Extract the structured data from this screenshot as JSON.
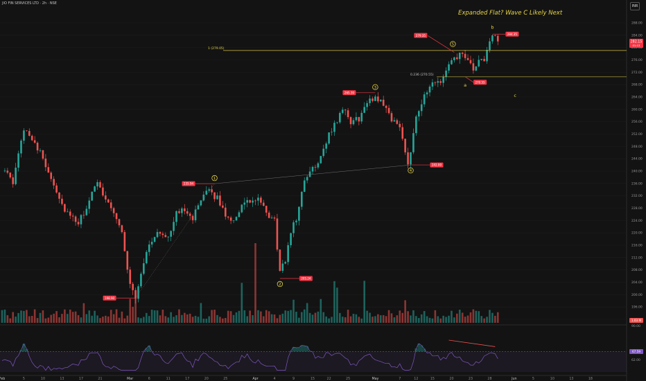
{
  "header": {
    "symbol_line": "JIO FIN SERVICES LTD · 2h · NSE",
    "currency": "INR"
  },
  "headline": "Expanded Flat? Wave C Likely Next",
  "colors": {
    "background": "#131313",
    "up": "#26a69a",
    "down": "#ef5350",
    "label": "#f23645",
    "wave": "#e8d648",
    "rsi": "#7e57c2"
  },
  "chart_data": {
    "type": "candlestick",
    "price_axis": {
      "ticks": [
        "288.00",
        "284.00",
        "280.00",
        "276.00",
        "272.00",
        "268.00",
        "264.00",
        "260.00",
        "256.00",
        "252.00",
        "248.00",
        "244.00",
        "240.00",
        "236.00",
        "232.00",
        "228.00",
        "224.00",
        "220.00",
        "216.00",
        "212.00",
        "208.00",
        "204.00",
        "200.00",
        "196.00",
        "192.00"
      ],
      "range": [
        190,
        289
      ]
    },
    "x_axis": {
      "ticks": [
        {
          "label": "Feb",
          "i": 0
        },
        {
          "label": "5",
          "i": 8
        },
        {
          "label": "10",
          "i": 15
        },
        {
          "label": "13",
          "i": 22
        },
        {
          "label": "17",
          "i": 29
        },
        {
          "label": "21",
          "i": 36
        },
        {
          "label": "Mar",
          "i": 47
        },
        {
          "label": "6",
          "i": 54
        },
        {
          "label": "11",
          "i": 61
        },
        {
          "label": "17",
          "i": 68
        },
        {
          "label": "20",
          "i": 75
        },
        {
          "label": "25",
          "i": 82
        },
        {
          "label": "Apr",
          "i": 93
        },
        {
          "label": "4",
          "i": 100
        },
        {
          "label": "9",
          "i": 107
        },
        {
          "label": "15",
          "i": 114
        },
        {
          "label": "22",
          "i": 120
        },
        {
          "label": "25",
          "i": 127
        },
        {
          "label": "May",
          "i": 137
        },
        {
          "label": "7",
          "i": 146
        },
        {
          "label": "12",
          "i": 152
        },
        {
          "label": "15",
          "i": 158
        },
        {
          "label": "20",
          "i": 165
        },
        {
          "label": "23",
          "i": 172
        },
        {
          "label": "28",
          "i": 179
        },
        {
          "label": "Jun",
          "i": 188
        },
        {
          "label": "5",
          "i": 195
        },
        {
          "label": "10",
          "i": 202
        },
        {
          "label": "13",
          "i": 209
        },
        {
          "label": "18",
          "i": 216
        }
      ]
    },
    "anchors": [
      {
        "i": 0,
        "p": 241
      },
      {
        "i": 4,
        "p": 236
      },
      {
        "i": 8,
        "p": 254
      },
      {
        "i": 11,
        "p": 251
      },
      {
        "i": 15,
        "p": 244
      },
      {
        "i": 19,
        "p": 236
      },
      {
        "i": 22,
        "p": 229
      },
      {
        "i": 25,
        "p": 225
      },
      {
        "i": 28,
        "p": 223
      },
      {
        "i": 32,
        "p": 230
      },
      {
        "i": 35,
        "p": 237
      },
      {
        "i": 38,
        "p": 231
      },
      {
        "i": 41,
        "p": 227
      },
      {
        "i": 44,
        "p": 220
      },
      {
        "i": 47,
        "p": 203
      },
      {
        "i": 49,
        "p": 199
      },
      {
        "i": 52,
        "p": 211
      },
      {
        "i": 55,
        "p": 218
      },
      {
        "i": 58,
        "p": 220
      },
      {
        "i": 61,
        "p": 219
      },
      {
        "i": 64,
        "p": 226
      },
      {
        "i": 67,
        "p": 228
      },
      {
        "i": 70,
        "p": 225
      },
      {
        "i": 73,
        "p": 230
      },
      {
        "i": 76,
        "p": 234
      },
      {
        "i": 79,
        "p": 231
      },
      {
        "i": 82,
        "p": 226
      },
      {
        "i": 85,
        "p": 224
      },
      {
        "i": 88,
        "p": 229
      },
      {
        "i": 91,
        "p": 230
      },
      {
        "i": 94,
        "p": 231
      },
      {
        "i": 97,
        "p": 226
      },
      {
        "i": 100,
        "p": 224
      },
      {
        "i": 102,
        "p": 207
      },
      {
        "i": 104,
        "p": 211
      },
      {
        "i": 106,
        "p": 221
      },
      {
        "i": 108,
        "p": 224
      },
      {
        "i": 110,
        "p": 234
      },
      {
        "i": 113,
        "p": 240
      },
      {
        "i": 116,
        "p": 243
      },
      {
        "i": 119,
        "p": 250
      },
      {
        "i": 122,
        "p": 255
      },
      {
        "i": 125,
        "p": 260
      },
      {
        "i": 128,
        "p": 256
      },
      {
        "i": 131,
        "p": 257
      },
      {
        "i": 134,
        "p": 262
      },
      {
        "i": 137,
        "p": 264
      },
      {
        "i": 140,
        "p": 262
      },
      {
        "i": 143,
        "p": 257
      },
      {
        "i": 146,
        "p": 254
      },
      {
        "i": 149,
        "p": 243
      },
      {
        "i": 150,
        "p": 247
      },
      {
        "i": 152,
        "p": 258
      },
      {
        "i": 155,
        "p": 264
      },
      {
        "i": 158,
        "p": 268
      },
      {
        "i": 161,
        "p": 269
      },
      {
        "i": 164,
        "p": 274
      },
      {
        "i": 167,
        "p": 277
      },
      {
        "i": 169,
        "p": 278
      },
      {
        "i": 171,
        "p": 275
      },
      {
        "i": 173,
        "p": 273
      },
      {
        "i": 175,
        "p": 275
      },
      {
        "i": 177,
        "p": 276
      },
      {
        "i": 179,
        "p": 283
      },
      {
        "i": 180,
        "p": 284
      },
      {
        "i": 182,
        "p": 282
      }
    ],
    "pivots": [
      {
        "label": "1",
        "i": 78,
        "p": 235.94,
        "price_label": "235.94",
        "tag_side": "left"
      },
      {
        "label": "2",
        "i": 102,
        "p": 205.24,
        "price_label": "205.24",
        "tag_side": "right"
      },
      {
        "label": "3",
        "i": 137,
        "p": 265.39,
        "price_label": "265.39",
        "tag_side": "left"
      },
      {
        "label": "4",
        "i": 150,
        "p": 242.0,
        "price_label": "242.00",
        "tag_side": "right"
      },
      {
        "label": "5",
        "i": 166,
        "p": 279.35,
        "price_label": "279.35",
        "tag_side": "left"
      },
      {
        "label": "a",
        "i": 170,
        "p": 270.55,
        "price_label": "270.55",
        "tag_side": "right"
      },
      {
        "label": "b",
        "i": 180,
        "p": 284.35,
        "price_label": "284.35",
        "tag_side": "right"
      },
      {
        "label": "c",
        "i": 183,
        "p": 264.5,
        "price_label": "",
        "tag_side": "none"
      }
    ],
    "start_low": {
      "i": 49,
      "p": 198.9,
      "price_label": "198.90"
    },
    "fib_lines": [
      {
        "label": "1 (279.05)",
        "p": 279.05
      },
      {
        "label": "0.236 (270.55)",
        "p": 270.55
      }
    ],
    "last_price": {
      "value": "282.15",
      "sub": "01:13",
      "color": "#f23645"
    },
    "volume": {
      "badge": "1.03 M"
    },
    "rsi": {
      "levels": [
        "90.00",
        "70.00",
        "62.00"
      ],
      "current": "67.59",
      "range": [
        45,
        95
      ],
      "dashed_level": 70
    }
  }
}
